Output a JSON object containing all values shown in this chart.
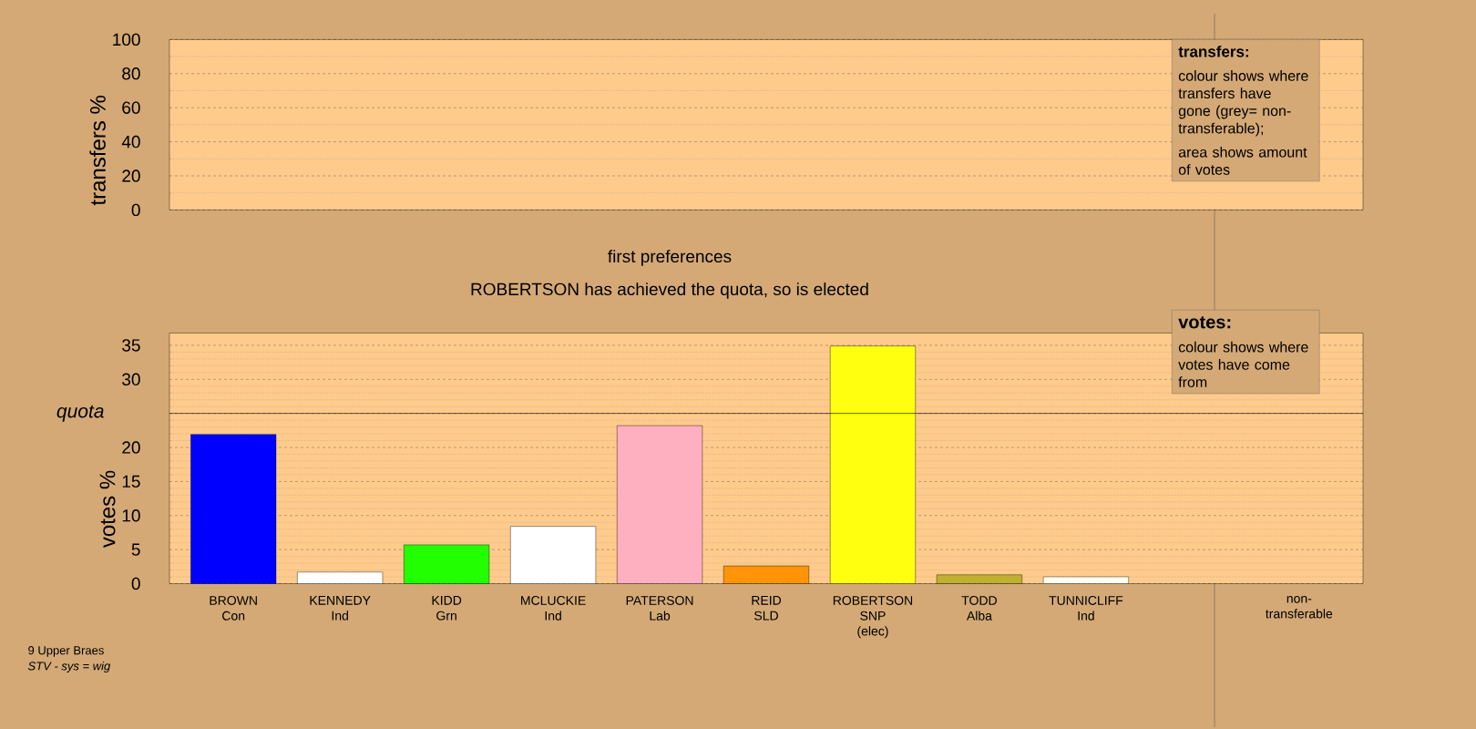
{
  "chart_data": [
    {
      "type": "bar",
      "categories": [
        null,
        null,
        null,
        null,
        null,
        null,
        null,
        null,
        null,
        null,
        null
      ],
      "values": [
        null,
        null,
        null,
        null,
        null,
        null,
        null,
        null,
        null,
        null,
        null
      ],
      "ylim": [
        0,
        100
      ],
      "yticks": [
        0,
        20,
        40,
        60,
        80,
        100
      ],
      "ylabel": "transfers %",
      "grid": true,
      "tick_labels": "y",
      "annotations": [
        "transfers:",
        "colour shows where transfers have gone (grey= non-transferable);",
        "area shows amount of votes"
      ]
    },
    {
      "type": "bar",
      "title": "first preferences",
      "subtitle": "ROBERTSON has achieved the quota, so is elected",
      "categories": [
        "BROWN Con",
        "KENNEDY Ind",
        "KIDD Grn",
        "MCLUCKIE Ind",
        "PATERSON Lab",
        "REID SLD",
        "ROBERTSON SNP (elec)",
        "TODD Alba",
        "TUNNICLIFF Ind",
        null,
        "non-transferable"
      ],
      "values": [
        21.9,
        1.7,
        5.7,
        8.4,
        23.2,
        2.6,
        34.9,
        1.3,
        1.0,
        null,
        null
      ],
      "colors": [
        "#0000ff",
        "#ffffff",
        "#22ff00",
        "#ffffff",
        "#ffb0c0",
        "#ff9408",
        "#ffff10",
        "#c0b030",
        "#fffff0",
        null,
        null
      ],
      "ylim": [
        0,
        36.8
      ],
      "yticks": [
        0,
        5,
        10,
        15,
        20,
        {
          "value": 25,
          "label": null
        },
        30,
        35
      ],
      "ylabel": "votes %",
      "grid": true,
      "ref_lines": [
        {
          "axis": "y",
          "value": 25,
          "label": "quota"
        }
      ],
      "annotations": [
        "votes:",
        "colour shows where votes have come from",
        "9 Upper Braes",
        "STV - sys = wig"
      ]
    }
  ]
}
